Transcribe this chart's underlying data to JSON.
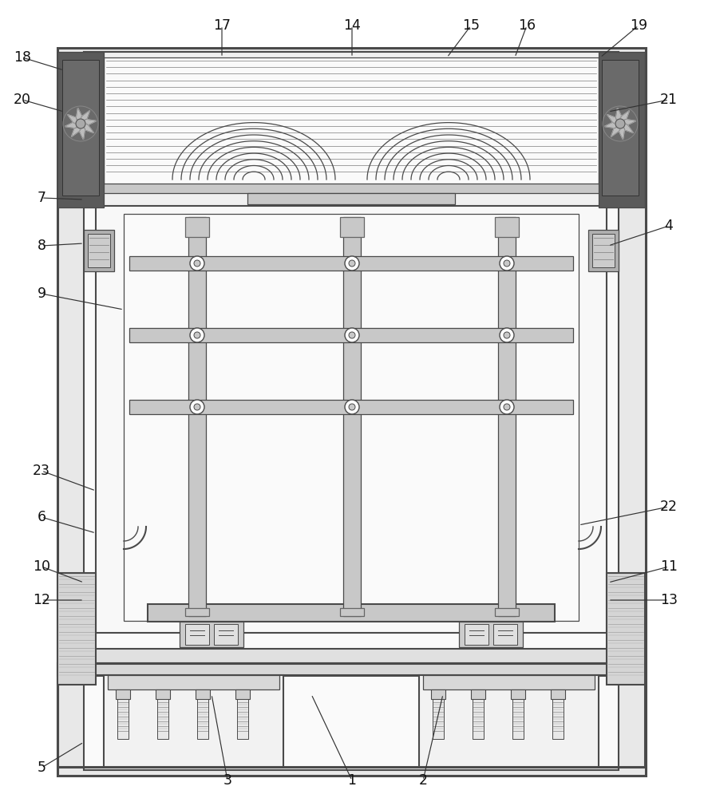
{
  "bg_color": "#ffffff",
  "lc": "#4a4a4a",
  "lc_thin": "#666666",
  "fill_outer": "#e8e8e8",
  "fill_panel": "#f0f0f0",
  "fill_dark": "#555555",
  "fill_mid": "#c8c8c8",
  "fill_light": "#ebebeb",
  "fill_white": "#fafafa",
  "label_info": [
    [
      "1",
      441,
      978,
      390,
      870
    ],
    [
      "2",
      530,
      978,
      555,
      870
    ],
    [
      "3",
      285,
      978,
      265,
      870
    ],
    [
      "4",
      838,
      283,
      762,
      308
    ],
    [
      "5",
      52,
      962,
      105,
      930
    ],
    [
      "6",
      52,
      648,
      120,
      668
    ],
    [
      "7",
      52,
      248,
      105,
      250
    ],
    [
      "8",
      52,
      308,
      105,
      305
    ],
    [
      "9",
      52,
      368,
      155,
      388
    ],
    [
      "10",
      52,
      710,
      105,
      730
    ],
    [
      "11",
      838,
      710,
      762,
      730
    ],
    [
      "12",
      52,
      752,
      105,
      752
    ],
    [
      "13",
      838,
      752,
      762,
      752
    ],
    [
      "14",
      441,
      32,
      441,
      72
    ],
    [
      "15",
      590,
      32,
      560,
      72
    ],
    [
      "16",
      660,
      32,
      645,
      72
    ],
    [
      "17",
      278,
      32,
      278,
      72
    ],
    [
      "18",
      28,
      72,
      80,
      88
    ],
    [
      "19",
      800,
      32,
      752,
      72
    ],
    [
      "20",
      28,
      125,
      80,
      140
    ],
    [
      "21",
      838,
      125,
      762,
      140
    ],
    [
      "22",
      838,
      635,
      725,
      658
    ],
    [
      "23",
      52,
      590,
      120,
      615
    ]
  ]
}
